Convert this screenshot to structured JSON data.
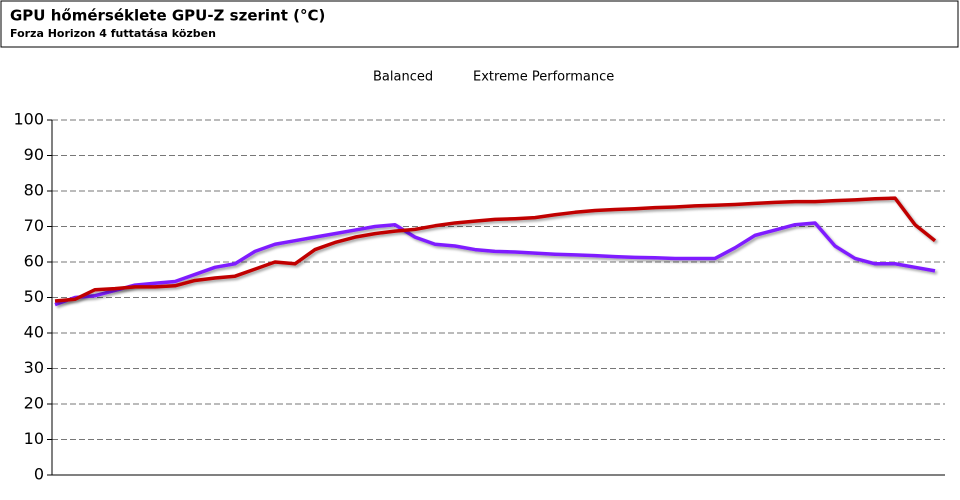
{
  "chart_data": {
    "type": "line",
    "title": "GPU hőmérséklete GPU-Z szerint (°C)",
    "subtitle": "Forza Horizon 4 futtatása közben",
    "series": [
      {
        "name": "Balanced",
        "color": "#7f1fff",
        "values": [
          48,
          50,
          50.5,
          52,
          53.5,
          54,
          54.5,
          56.5,
          58.5,
          59.5,
          63,
          65,
          66,
          67,
          68,
          69,
          70,
          70.5,
          67,
          65,
          64.5,
          63.5,
          63,
          62.8,
          62.5,
          62.2,
          62,
          61.8,
          61.5,
          61.3,
          61.2,
          61,
          61,
          61,
          64,
          67.5,
          69,
          70.5,
          71,
          64.5,
          61,
          59.5,
          59.5,
          58.5,
          57.5
        ]
      },
      {
        "name": "Extreme Performance",
        "color": "#c00000",
        "values": [
          49,
          49.5,
          52.2,
          52.5,
          53,
          53,
          53.3,
          54.8,
          55.5,
          56,
          58,
          60,
          59.5,
          63.5,
          65.5,
          67,
          68,
          68.7,
          69.2,
          70.2,
          71,
          71.5,
          72,
          72.2,
          72.5,
          73.3,
          74,
          74.5,
          74.8,
          75,
          75.3,
          75.5,
          75.8,
          76,
          76.2,
          76.5,
          76.8,
          77,
          77,
          77.3,
          77.5,
          77.8,
          78,
          70.5,
          66
        ]
      }
    ],
    "ylim": [
      0,
      100
    ],
    "yticks": [
      0,
      10,
      20,
      30,
      40,
      50,
      60,
      70,
      80,
      90,
      100
    ],
    "grid": true,
    "legend": "top"
  }
}
